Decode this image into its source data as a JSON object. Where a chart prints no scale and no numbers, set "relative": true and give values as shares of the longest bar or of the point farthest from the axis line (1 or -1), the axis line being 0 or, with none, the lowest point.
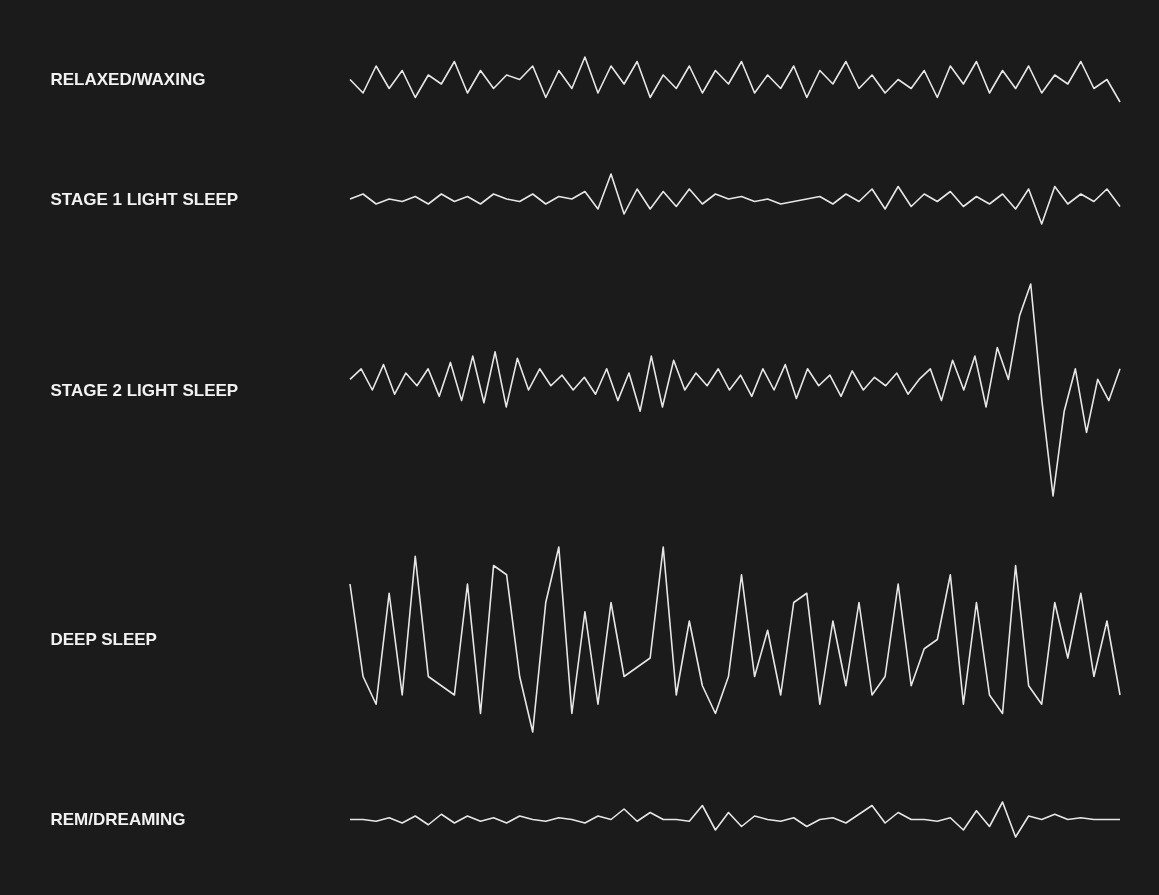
{
  "chart_data": [
    {
      "type": "line",
      "ylabel": "RELAXED/WAXING",
      "relative": true,
      "categories": [
        null,
        null,
        null,
        null,
        null,
        null,
        null,
        null,
        null,
        null,
        null,
        null,
        null,
        null,
        null,
        null,
        null,
        null,
        null,
        null,
        null,
        null,
        null,
        null,
        null,
        null,
        null,
        null,
        null,
        null,
        null,
        null,
        null,
        null,
        null,
        null,
        null,
        null,
        null,
        null,
        null,
        null,
        null,
        null,
        null,
        null,
        null,
        null,
        null,
        null,
        null,
        null,
        null,
        null,
        null,
        null,
        null,
        null,
        null,
        null
      ],
      "series": [
        {
          "color": "#e6e6e6",
          "values": [
            0.5,
            0.2,
            0.8,
            0.3,
            0.7,
            0.1,
            0.6,
            0.4,
            0.9,
            0.2,
            0.7,
            0.3,
            0.6,
            0.5,
            0.8,
            0.1,
            0.7,
            0.3,
            1,
            0.2,
            0.8,
            0.4,
            0.9,
            0.1,
            0.6,
            0.3,
            0.8,
            0.2,
            0.7,
            0.4,
            0.9,
            0.2,
            0.6,
            0.3,
            0.8,
            0.1,
            0.7,
            0.4,
            0.9,
            0.3,
            0.6,
            0.2,
            0.5,
            0.3,
            0.7,
            0.1,
            0.8,
            0.4,
            0.9,
            0.2,
            0.7,
            0.3,
            0.8,
            0.2,
            0.6,
            0.4,
            0.9,
            0.3,
            0.5,
            0.0
          ]
        }
      ]
    },
    {
      "type": "line",
      "ylabel": "STAGE 1 LIGHT SLEEP",
      "relative": true,
      "categories": [
        null,
        null,
        null,
        null,
        null,
        null,
        null,
        null,
        null,
        null,
        null,
        null,
        null,
        null,
        null,
        null,
        null,
        null,
        null,
        null,
        null,
        null,
        null,
        null,
        null,
        null,
        null,
        null,
        null,
        null,
        null,
        null,
        null,
        null,
        null,
        null,
        null,
        null,
        null,
        null,
        null,
        null,
        null,
        null,
        null,
        null,
        null,
        null,
        null,
        null,
        null,
        null,
        null,
        null,
        null,
        null,
        null,
        null,
        null,
        null
      ],
      "series": [
        {
          "color": "#e6e6e6",
          "values": [
            0.5,
            0.6,
            0.4,
            0.5,
            0.45,
            0.55,
            0.4,
            0.6,
            0.45,
            0.55,
            0.4,
            0.6,
            0.5,
            0.45,
            0.6,
            0.4,
            0.55,
            0.5,
            0.65,
            0.3,
            1,
            0.2,
            0.7,
            0.3,
            0.65,
            0.35,
            0.7,
            0.4,
            0.6,
            0.5,
            0.55,
            0.45,
            0.5,
            0.4,
            0.45,
            0.5,
            0.55,
            0.4,
            0.6,
            0.45,
            0.7,
            0.3,
            0.75,
            0.35,
            0.6,
            0.45,
            0.65,
            0.35,
            0.55,
            0.4,
            0.6,
            0.3,
            0.7,
            0.0,
            0.75,
            0.4,
            0.6,
            0.45,
            0.7,
            0.35
          ]
        }
      ]
    },
    {
      "type": "line",
      "ylabel": "STAGE 2 LIGHT SLEEP",
      "relative": true,
      "categories": [
        null,
        null,
        null,
        null,
        null,
        null,
        null,
        null,
        null,
        null,
        null,
        null,
        null,
        null,
        null,
        null,
        null,
        null,
        null,
        null,
        null,
        null,
        null,
        null,
        null,
        null,
        null,
        null,
        null,
        null,
        null,
        null,
        null,
        null,
        null,
        null,
        null,
        null,
        null,
        null,
        null,
        null,
        null,
        null,
        null,
        null,
        null,
        null,
        null,
        null,
        null,
        null,
        null,
        null,
        null,
        null,
        null,
        null,
        null,
        null,
        null,
        null,
        null,
        null,
        null,
        null,
        null,
        null,
        null,
        null
      ],
      "series": [
        {
          "color": "#e6e6e6",
          "values": [
            0.55,
            0.6,
            0.5,
            0.62,
            0.48,
            0.58,
            0.52,
            0.6,
            0.47,
            0.63,
            0.45,
            0.66,
            0.44,
            0.68,
            0.42,
            0.65,
            0.5,
            0.6,
            0.52,
            0.57,
            0.5,
            0.56,
            0.48,
            0.6,
            0.45,
            0.58,
            0.4,
            0.66,
            0.42,
            0.64,
            0.5,
            0.58,
            0.52,
            0.6,
            0.5,
            0.57,
            0.47,
            0.6,
            0.5,
            0.62,
            0.46,
            0.6,
            0.52,
            0.57,
            0.47,
            0.59,
            0.5,
            0.56,
            0.52,
            0.58,
            0.48,
            0.55,
            0.6,
            0.45,
            0.64,
            0.5,
            0.66,
            0.42,
            0.7,
            0.55,
            0.85,
            1,
            0.45,
            0.0,
            0.4,
            0.6,
            0.3,
            0.55,
            0.45,
            0.6
          ]
        }
      ]
    },
    {
      "type": "line",
      "ylabel": "DEEP SLEEP",
      "relative": true,
      "categories": [
        null,
        null,
        null,
        null,
        null,
        null,
        null,
        null,
        null,
        null,
        null,
        null,
        null,
        null,
        null,
        null,
        null,
        null,
        null,
        null,
        null,
        null,
        null,
        null,
        null,
        null,
        null,
        null,
        null,
        null,
        null,
        null,
        null,
        null,
        null,
        null,
        null,
        null,
        null,
        null,
        null,
        null,
        null,
        null,
        null,
        null,
        null,
        null,
        null,
        null,
        null,
        null,
        null,
        null,
        null,
        null,
        null,
        null,
        null,
        null
      ],
      "series": [
        {
          "color": "#e6e6e6",
          "values": [
            0.8,
            0.3,
            0.15,
            0.75,
            0.2,
            0.95,
            0.3,
            0.25,
            0.2,
            0.8,
            0.1,
            0.9,
            0.85,
            0.3,
            0.0,
            0.7,
            1,
            0.1,
            0.65,
            0.15,
            0.7,
            0.3,
            0.35,
            0.4,
            1,
            0.2,
            0.6,
            0.25,
            0.1,
            0.3,
            0.85,
            0.3,
            0.55,
            0.2,
            0.7,
            0.75,
            0.15,
            0.6,
            0.25,
            0.7,
            0.2,
            0.3,
            0.8,
            0.25,
            0.45,
            0.5,
            0.85,
            0.15,
            0.7,
            0.2,
            0.1,
            0.9,
            0.25,
            0.15,
            0.7,
            0.4,
            0.75,
            0.3,
            0.6,
            0.2
          ]
        }
      ]
    },
    {
      "type": "line",
      "ylabel": "REM/DREAMING",
      "relative": true,
      "categories": [
        null,
        null,
        null,
        null,
        null,
        null,
        null,
        null,
        null,
        null,
        null,
        null,
        null,
        null,
        null,
        null,
        null,
        null,
        null,
        null,
        null,
        null,
        null,
        null,
        null,
        null,
        null,
        null,
        null,
        null,
        null,
        null,
        null,
        null,
        null,
        null,
        null,
        null,
        null,
        null,
        null,
        null,
        null,
        null,
        null,
        null,
        null,
        null,
        null,
        null,
        null,
        null,
        null,
        null,
        null,
        null,
        null,
        null,
        null,
        null
      ],
      "series": [
        {
          "color": "#e6e6e6",
          "values": [
            0.5,
            0.5,
            0.45,
            0.55,
            0.4,
            0.6,
            0.35,
            0.65,
            0.4,
            0.6,
            0.45,
            0.55,
            0.4,
            0.6,
            0.5,
            0.45,
            0.55,
            0.5,
            0.4,
            0.6,
            0.5,
            0.8,
            0.45,
            0.7,
            0.5,
            0.5,
            0.45,
            0.9,
            0.2,
            0.7,
            0.3,
            0.6,
            0.5,
            0.45,
            0.55,
            0.3,
            0.5,
            0.55,
            0.4,
            0.65,
            0.9,
            0.4,
            0.7,
            0.5,
            0.5,
            0.45,
            0.55,
            0.2,
            0.75,
            0.3,
            1,
            0.0,
            0.6,
            0.5,
            0.65,
            0.5,
            0.55,
            0.5,
            0.5,
            0.5
          ]
        }
      ]
    }
  ]
}
